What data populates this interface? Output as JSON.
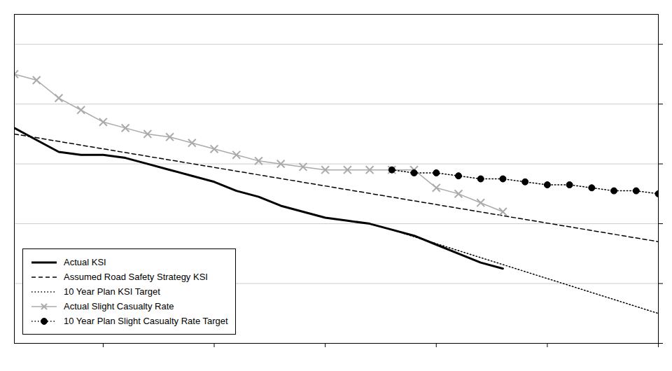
{
  "chart_data": {
    "type": "line",
    "series": [
      {
        "name": "Actual KSI",
        "color": "black",
        "line_style": "solid",
        "x": [
          1981,
          1982,
          1983,
          1984,
          1985,
          1986,
          1987,
          1988,
          1989,
          1990,
          1991,
          1992,
          1993,
          1994,
          1995,
          1996,
          1997,
          1998,
          1999,
          2000,
          2001,
          2002,
          2003
        ],
        "values": [
          0.72,
          0.68,
          0.64,
          0.63,
          0.63,
          0.62,
          0.6,
          0.58,
          0.56,
          0.54,
          0.51,
          0.49,
          0.46,
          0.44,
          0.42,
          0.41,
          0.4,
          0.38,
          0.36,
          0.33,
          0.3,
          0.27,
          0.25
        ]
      },
      {
        "name": "Assumed Road Safety Strategy KSI",
        "color": "black",
        "line_style": "dashed",
        "x": [
          1981,
          2010
        ],
        "values": [
          0.7,
          0.34
        ]
      },
      {
        "name": "10 Year Plan KSI Target",
        "color": "black",
        "line_style": "dotted",
        "x": [
          1998,
          2010
        ],
        "values": [
          0.38,
          0.1
        ]
      },
      {
        "name": "Actual Slight Casualty Rate",
        "color": "#aaaaaa",
        "line_style": "solid",
        "marker": "x",
        "x": [
          1981,
          1982,
          1983,
          1984,
          1985,
          1986,
          1987,
          1988,
          1989,
          1990,
          1991,
          1992,
          1993,
          1994,
          1995,
          1996,
          1997,
          1998,
          1999,
          2000,
          2001,
          2002,
          2003
        ],
        "values": [
          0.9,
          0.88,
          0.82,
          0.78,
          0.74,
          0.72,
          0.7,
          0.69,
          0.67,
          0.65,
          0.63,
          0.61,
          0.6,
          0.59,
          0.58,
          0.58,
          0.58,
          0.58,
          0.58,
          0.52,
          0.5,
          0.47,
          0.44
        ]
      },
      {
        "name": "10 Year Plan Slight Casualty Rate Target",
        "color": "black",
        "line_style": "dotted",
        "marker": "o",
        "x": [
          1998,
          1999,
          2000,
          2001,
          2002,
          2003,
          2004,
          2005,
          2006,
          2007,
          2008,
          2009,
          2010
        ],
        "values": [
          0.58,
          0.57,
          0.57,
          0.56,
          0.55,
          0.55,
          0.54,
          0.53,
          0.53,
          0.52,
          0.51,
          0.51,
          0.5
        ]
      }
    ],
    "xlim": [
      1981,
      2010
    ],
    "xticks": [
      1985,
      1990,
      1995,
      2000,
      2005,
      2010
    ],
    "ylim": [
      0.0,
      1.1
    ],
    "yticks": [
      0.0,
      0.2,
      0.4,
      0.6,
      0.8,
      1.0
    ],
    "grid": "y",
    "tick_labels": false,
    "legend": "lower left"
  }
}
